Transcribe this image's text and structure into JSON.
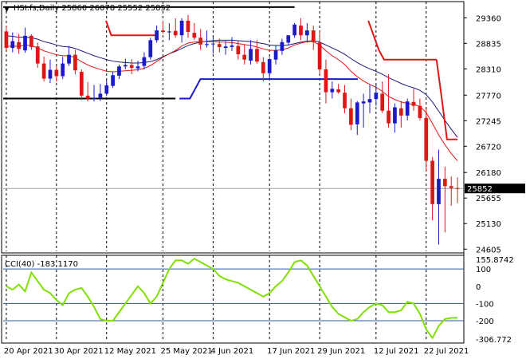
{
  "header": {
    "symbol_line": "HSI.fs,Daily  25860 26078 25552 25852",
    "current_price_label": "25852"
  },
  "indicator": {
    "label": "CCI(40) -183.1170"
  },
  "colors": {
    "bull": "#1a1acc",
    "bear": "#e01515",
    "ma_fast": "#e01515",
    "ma_slow": "#1a1a7a",
    "stop_red": "#e01515",
    "stop_blue": "#1a1acc",
    "support": "#000000",
    "cci_line": "#80e000",
    "cci_level": "#2c5aa0"
  },
  "chart_data": [
    {
      "type": "candlestick",
      "title": "HSI.fs,Daily",
      "x": [
        "20 Apr 2021",
        "21 Apr 2021",
        "22 Apr 2021",
        "23 Apr 2021",
        "26 Apr 2021",
        "27 Apr 2021",
        "28 Apr 2021",
        "29 Apr 2021",
        "30 Apr 2021",
        "3 May 2021",
        "4 May 2021",
        "5 May 2021",
        "6 May 2021",
        "7 May 2021",
        "10 May 2021",
        "11 May 2021",
        "12 May 2021",
        "13 May 2021",
        "14 May 2021",
        "17 May 2021",
        "18 May 2021",
        "19 May 2021",
        "20 May 2021",
        "21 May 2021",
        "24 May 2021",
        "25 May 2021",
        "26 May 2021",
        "27 May 2021",
        "28 May 2021",
        "31 May 2021",
        "1 Jun 2021",
        "2 Jun 2021",
        "3 Jun 2021",
        "4 Jun 2021",
        "7 Jun 2021",
        "8 Jun 2021",
        "9 Jun 2021",
        "10 Jun 2021",
        "11 Jun 2021",
        "14 Jun 2021",
        "15 Jun 2021",
        "16 Jun 2021",
        "17 Jun 2021",
        "18 Jun 2021",
        "21 Jun 2021",
        "22 Jun 2021",
        "23 Jun 2021",
        "24 Jun 2021",
        "25 Jun 2021",
        "28 Jun 2021",
        "29 Jun 2021",
        "30 Jun 2021",
        "1 Jul 2021",
        "2 Jul 2021",
        "5 Jul 2021",
        "6 Jul 2021",
        "7 Jul 2021",
        "8 Jul 2021",
        "9 Jul 2021",
        "12 Jul 2021",
        "13 Jul 2021",
        "14 Jul 2021",
        "15 Jul 2021",
        "16 Jul 2021",
        "19 Jul 2021",
        "20 Jul 2021",
        "21 Jul 2021",
        "22 Jul 2021",
        "23 Jul 2021",
        "26 Jul 2021",
        "27 Jul 2021",
        "28 Jul 2021",
        "29 Jul 2021"
      ],
      "x_tick_labels": [
        "20 Apr 2021",
        "30 Apr 2021",
        "12 May 2021",
        "25 May 2021",
        "4 Jun 2021",
        "17 Jun 2021",
        "29 Jun 2021",
        "12 Jul 2021",
        "22 Jul 2021"
      ],
      "x_tick_indices": [
        0,
        8,
        16,
        25,
        33,
        42,
        50,
        59,
        67
      ],
      "y_tick_labels": [
        "29360",
        "28835",
        "28310",
        "27770",
        "27245",
        "26720",
        "26180",
        "25655",
        "25130",
        "24605"
      ],
      "y_ticks": [
        29360,
        28835,
        28310,
        27770,
        27245,
        26720,
        26180,
        25655,
        25130,
        24605
      ],
      "ylim": [
        24560,
        29660
      ],
      "grid": true,
      "open": [
        29080,
        28740,
        28860,
        28690,
        28990,
        28770,
        28420,
        28110,
        28290,
        28160,
        28420,
        28600,
        28250,
        27760,
        27700,
        27720,
        27800,
        27960,
        28170,
        28360,
        28390,
        28320,
        28370,
        28550,
        28900,
        29100,
        29060,
        29090,
        29000,
        29300,
        29050,
        28950,
        28800,
        28830,
        28820,
        28740,
        28760,
        28780,
        28600,
        28480,
        28720,
        28450,
        28220,
        28500,
        28680,
        28850,
        29000,
        29200,
        29000,
        29100,
        28850,
        28300,
        27830,
        27890,
        27820,
        27500,
        27170,
        27600,
        27620,
        27690,
        27800,
        27450,
        27190,
        27500,
        27350,
        27630,
        27550,
        27300,
        26420,
        25530,
        26050,
        25900,
        25860
      ],
      "high": [
        29200,
        29060,
        29030,
        29160,
        29020,
        28850,
        28560,
        28500,
        28380,
        28560,
        28780,
        28700,
        28300,
        28040,
        27980,
        28000,
        28080,
        28250,
        28400,
        28520,
        28510,
        28480,
        28650,
        28950,
        29200,
        29300,
        29250,
        29350,
        29350,
        29420,
        29250,
        29130,
        29100,
        28960,
        28930,
        28880,
        28960,
        28880,
        28800,
        28900,
        28900,
        28550,
        28550,
        28800,
        28930,
        29000,
        29250,
        29350,
        29250,
        29200,
        29100,
        28500,
        28050,
        28000,
        27980,
        27700,
        27650,
        27800,
        27980,
        27980,
        28050,
        28200,
        27600,
        27650,
        27700,
        27900,
        27700,
        27500,
        26500,
        26650,
        26300,
        26100,
        26078
      ],
      "low": [
        28700,
        28650,
        28620,
        28640,
        28700,
        28330,
        28050,
        28020,
        28050,
        28100,
        28370,
        28200,
        27670,
        27640,
        27640,
        27650,
        27750,
        27920,
        28100,
        28300,
        28200,
        28260,
        28300,
        28500,
        28850,
        29030,
        28900,
        28950,
        28850,
        28950,
        28900,
        28700,
        28750,
        28620,
        28650,
        28600,
        28680,
        28500,
        28400,
        28400,
        28420,
        28050,
        28120,
        28400,
        28600,
        28800,
        28950,
        28900,
        28850,
        28700,
        28200,
        27600,
        27700,
        27800,
        27400,
        27050,
        26950,
        27100,
        27400,
        27550,
        27400,
        27100,
        27000,
        27100,
        27250,
        27450,
        27250,
        26200,
        25200,
        24700,
        24950,
        25500,
        25552
      ],
      "close": [
        28740,
        28880,
        28720,
        28990,
        28760,
        28420,
        28110,
        28290,
        28160,
        28420,
        28600,
        28280,
        27760,
        27700,
        27710,
        27800,
        27970,
        28180,
        28360,
        28390,
        28330,
        28360,
        28550,
        28900,
        29100,
        29070,
        29080,
        29000,
        29300,
        29070,
        28950,
        28810,
        28820,
        28830,
        28760,
        28770,
        28790,
        28610,
        28500,
        28720,
        28460,
        28220,
        28510,
        28690,
        28860,
        29000,
        29220,
        29000,
        29100,
        28860,
        28300,
        27830,
        27900,
        27830,
        27500,
        27160,
        27620,
        27640,
        27690,
        27820,
        27450,
        27190,
        27520,
        27350,
        27640,
        27550,
        27300,
        26420,
        25530,
        26050,
        25900,
        25860,
        25852
      ],
      "current_price": 25852,
      "overlays": {
        "ma_fast": [
          28770,
          28780,
          28770,
          28800,
          28790,
          28740,
          28680,
          28640,
          28600,
          28580,
          28580,
          28540,
          28460,
          28390,
          28340,
          28300,
          28260,
          28250,
          28260,
          28270,
          28280,
          28290,
          28320,
          28380,
          28460,
          28550,
          28620,
          28690,
          28780,
          28840,
          28860,
          28870,
          28870,
          28870,
          28860,
          28860,
          28850,
          28830,
          28810,
          28790,
          28760,
          28720,
          28690,
          28690,
          28700,
          28740,
          28800,
          28840,
          28870,
          28870,
          28800,
          28680,
          28580,
          28500,
          28400,
          28260,
          28150,
          28060,
          27990,
          27930,
          27850,
          27740,
          27680,
          27630,
          27600,
          27580,
          27540,
          27410,
          27190,
          26950,
          26750,
          26570,
          26420
        ],
        "ma_slow": [
          28990,
          28980,
          28960,
          28960,
          28950,
          28920,
          28870,
          28840,
          28800,
          28770,
          28760,
          28730,
          28680,
          28630,
          28580,
          28540,
          28500,
          28470,
          28450,
          28440,
          28430,
          28430,
          28440,
          28460,
          28500,
          28560,
          28620,
          28670,
          28730,
          28790,
          28830,
          28860,
          28880,
          28890,
          28900,
          28900,
          28900,
          28890,
          28880,
          28870,
          28850,
          28830,
          28800,
          28790,
          28790,
          28800,
          28830,
          28860,
          28880,
          28890,
          28860,
          28800,
          28740,
          28680,
          28610,
          28520,
          28440,
          28370,
          28310,
          28260,
          28200,
          28130,
          28070,
          28010,
          27960,
          27920,
          27870,
          27780,
          27630,
          27440,
          27250,
          27070,
          26900
        ],
        "stop_red_segments": [
          {
            "x": [
              19,
              20,
              21,
              22,
              23,
              24,
              25,
              26,
              27,
              28,
              29
            ],
            "y": [
              29300,
              29000,
              29000,
              29000,
              29000,
              29000,
              29000,
              29000,
              29000,
              29000,
              29000
            ]
          },
          {
            "x": [
              69,
              70,
              71,
              72,
              73
            ],
            "y": [
              29300,
              29000,
              28700,
              28500,
              28500
            ]
          },
          {
            "x": [
              73,
              74,
              75,
              76,
              77,
              78,
              79,
              80,
              81,
              82
            ],
            "y": [
              28500,
              28500,
              28500,
              28500,
              28500,
              28500,
              28500,
              28500,
              28500,
              28500
            ]
          },
          {
            "x": [
              82,
              83,
              84,
              85,
              86
            ],
            "y": [
              28500,
              27700,
              26860,
              26860,
              26860
            ]
          }
        ],
        "stop_blue_segments": [
          {
            "x": [
              33,
              34,
              35,
              36,
              37,
              38
            ],
            "y": [
              27700,
              27700,
              27700,
              27900,
              28100,
              28100
            ]
          },
          {
            "x": [
              38,
              39,
              40,
              41,
              42,
              43,
              44,
              45,
              46,
              47,
              48,
              49,
              50,
              51,
              52,
              53,
              54,
              55,
              56,
              57,
              58,
              59,
              60,
              61,
              62,
              63,
              64,
              65,
              66,
              67
            ],
            "y": [
              28100,
              28100,
              28100,
              28100,
              28100,
              28100,
              28100,
              28100,
              28100,
              28100,
              28100,
              28100,
              28100,
              28100,
              28100,
              28100,
              28100,
              28100,
              28100,
              28100,
              28100,
              28100,
              28100,
              28100,
              28100,
              28100,
              28100,
              28100,
              28100,
              28100
            ]
          }
        ],
        "support_lines": [
          {
            "from_index": 0,
            "to_index": 46,
            "y": 29580
          },
          {
            "from_index": 0,
            "to_index": 27,
            "y": 27700
          }
        ]
      }
    },
    {
      "type": "line",
      "title": "CCI(40) -183.1170",
      "y_tick_labels": [
        "155.8742",
        "100",
        "0",
        "-100",
        "-200",
        "-306.772"
      ],
      "y_ticks": [
        155.8742,
        100,
        0,
        -100,
        -200,
        -306.772
      ],
      "levels": [
        100,
        -100,
        -200
      ],
      "ylim": [
        -320,
        170
      ],
      "grid": true,
      "values": [
        0,
        -20,
        10,
        -30,
        80,
        30,
        -20,
        -40,
        -80,
        -110,
        -40,
        -20,
        -10,
        -60,
        -120,
        -190,
        -200,
        -200,
        -150,
        -100,
        -50,
        0,
        -40,
        -100,
        -60,
        20,
        100,
        150,
        150,
        130,
        160,
        140,
        120,
        100,
        60,
        40,
        30,
        20,
        0,
        -20,
        -40,
        -60,
        -40,
        0,
        30,
        80,
        140,
        150,
        120,
        60,
        0,
        -60,
        -120,
        -160,
        -180,
        -200,
        -190,
        -150,
        -120,
        -100,
        -110,
        -150,
        -150,
        -140,
        -90,
        -100,
        -160,
        -250,
        -300,
        -230,
        -190,
        -183,
        -183
      ]
    }
  ]
}
